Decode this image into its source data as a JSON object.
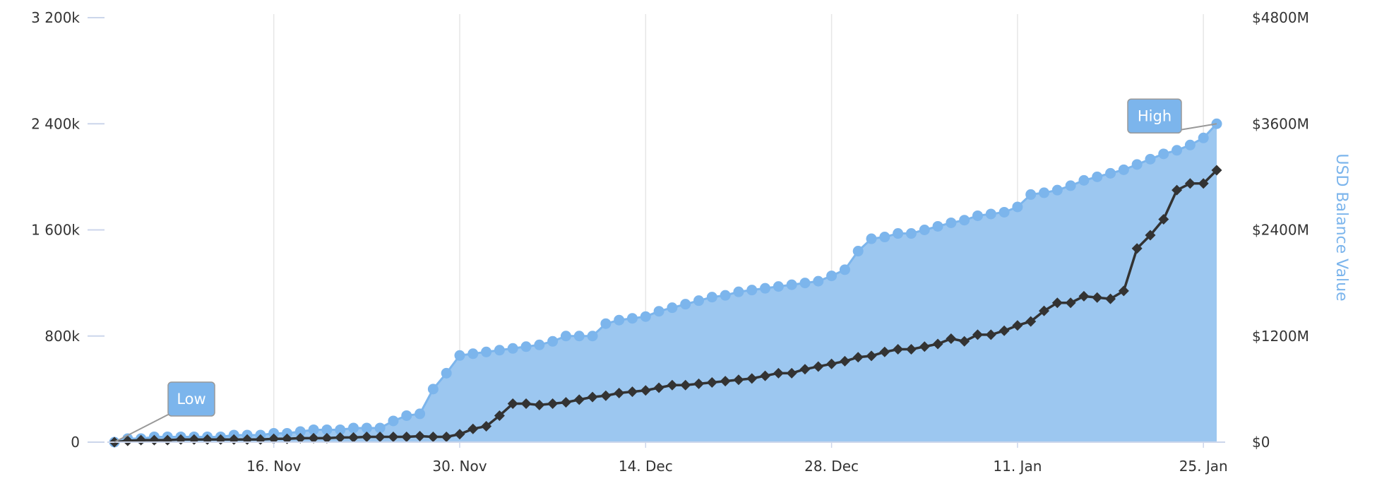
{
  "chart_data": {
    "type": "area",
    "x_ticks": [
      "16. Nov",
      "30. Nov",
      "14. Dec",
      "28. Dec",
      "11. Jan",
      "25. Jan"
    ],
    "y_left": {
      "ticks": [
        "0",
        "800k",
        "1 600k",
        "2 400k",
        "3 200k"
      ],
      "range": [
        0,
        3200000
      ]
    },
    "y_right": {
      "title": "USD Balance Value",
      "ticks": [
        "$0",
        "$1200M",
        "$2400M",
        "$3600M",
        "$4800M"
      ],
      "range": [
        0,
        4800
      ]
    },
    "flags": [
      {
        "label": "Low",
        "date": "Nov 4",
        "series": "line"
      },
      {
        "label": "High",
        "date": "Jan 26",
        "series": "area"
      }
    ],
    "dates": [
      "Nov 4",
      "Nov 5",
      "Nov 6",
      "Nov 7",
      "Nov 8",
      "Nov 9",
      "Nov 10",
      "Nov 11",
      "Nov 12",
      "Nov 13",
      "Nov 14",
      "Nov 15",
      "Nov 16",
      "Nov 17",
      "Nov 18",
      "Nov 19",
      "Nov 20",
      "Nov 21",
      "Nov 22",
      "Nov 23",
      "Nov 24",
      "Nov 25",
      "Nov 26",
      "Nov 27",
      "Nov 28",
      "Nov 29",
      "Nov 30",
      "Dec 1",
      "Dec 2",
      "Dec 3",
      "Dec 4",
      "Dec 5",
      "Dec 6",
      "Dec 7",
      "Dec 8",
      "Dec 9",
      "Dec 10",
      "Dec 11",
      "Dec 12",
      "Dec 13",
      "Dec 14",
      "Dec 15",
      "Dec 16",
      "Dec 17",
      "Dec 18",
      "Dec 19",
      "Dec 20",
      "Dec 21",
      "Dec 22",
      "Dec 23",
      "Dec 24",
      "Dec 25",
      "Dec 26",
      "Dec 27",
      "Dec 28",
      "Dec 29",
      "Dec 30",
      "Dec 31",
      "Jan 1",
      "Jan 2",
      "Jan 3",
      "Jan 4",
      "Jan 5",
      "Jan 6",
      "Jan 7",
      "Jan 8",
      "Jan 9",
      "Jan 10",
      "Jan 11",
      "Jan 12",
      "Jan 13",
      "Jan 14",
      "Jan 15",
      "Jan 16",
      "Jan 17",
      "Jan 18",
      "Jan 19",
      "Jan 20",
      "Jan 21",
      "Jan 22",
      "Jan 23",
      "Jan 24",
      "Jan 25",
      "Jan 26"
    ],
    "series": [
      {
        "kind": "area",
        "axis": "right",
        "color": "#7cb5ec",
        "fill": "#9cc7f0",
        "unit": "$M",
        "values": [
          0,
          40,
          40,
          60,
          60,
          60,
          60,
          60,
          60,
          80,
          80,
          80,
          100,
          100,
          120,
          140,
          140,
          140,
          160,
          160,
          160,
          240,
          300,
          320,
          600,
          780,
          980,
          1000,
          1020,
          1040,
          1060,
          1080,
          1100,
          1140,
          1200,
          1200,
          1200,
          1340,
          1380,
          1400,
          1420,
          1480,
          1520,
          1560,
          1600,
          1640,
          1660,
          1700,
          1720,
          1740,
          1760,
          1780,
          1800,
          1820,
          1880,
          1950,
          2160,
          2300,
          2320,
          2360,
          2360,
          2400,
          2440,
          2480,
          2510,
          2560,
          2580,
          2600,
          2660,
          2800,
          2820,
          2850,
          2900,
          2960,
          3000,
          3040,
          3080,
          3140,
          3200,
          3260,
          3300,
          3360,
          3440,
          3600
        ]
      },
      {
        "kind": "line",
        "axis": "left",
        "color": "#333333",
        "values": [
          0,
          10000,
          15000,
          15000,
          15000,
          20000,
          20000,
          20000,
          20000,
          20000,
          20000,
          20000,
          25000,
          25000,
          30000,
          30000,
          30000,
          35000,
          35000,
          40000,
          40000,
          40000,
          40000,
          45000,
          40000,
          40000,
          60000,
          100000,
          120000,
          200000,
          290000,
          290000,
          280000,
          290000,
          300000,
          320000,
          340000,
          350000,
          370000,
          380000,
          390000,
          410000,
          430000,
          430000,
          440000,
          450000,
          460000,
          470000,
          480000,
          500000,
          520000,
          520000,
          550000,
          570000,
          590000,
          610000,
          640000,
          650000,
          680000,
          700000,
          700000,
          720000,
          740000,
          780000,
          760000,
          810000,
          810000,
          840000,
          880000,
          910000,
          990000,
          1050000,
          1050000,
          1100000,
          1090000,
          1080000,
          1140000,
          1460000,
          1560000,
          1680000,
          1900000,
          1950000,
          1950000,
          2050000
        ]
      }
    ]
  }
}
